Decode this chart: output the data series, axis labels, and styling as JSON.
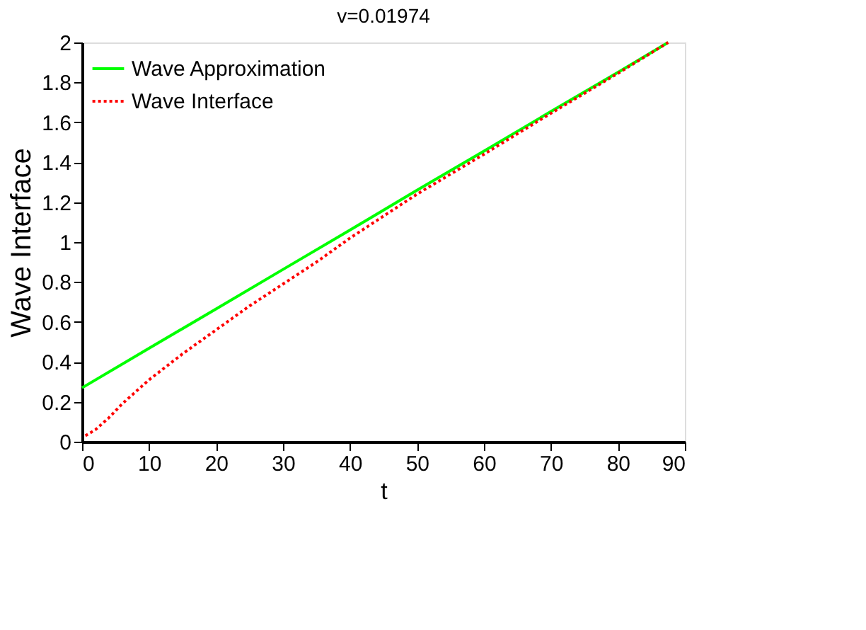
{
  "chart_data": {
    "type": "line",
    "title": "v=0.01974",
    "xlabel": "t",
    "ylabel": "Wave Interface",
    "xlim": [
      0,
      90
    ],
    "ylim": [
      0,
      2
    ],
    "xticks": [
      0,
      10,
      20,
      30,
      40,
      50,
      60,
      70,
      80,
      90
    ],
    "yticks": [
      0,
      0.2,
      0.4,
      0.6,
      0.8,
      1,
      1.2,
      1.4,
      1.6,
      1.8,
      2
    ],
    "grid": false,
    "legend": "top left",
    "marker": "none",
    "series": [
      {
        "name": "Wave Approximation",
        "color": "#00ff00",
        "line_style": "solid",
        "x": [
          0,
          10,
          20,
          30,
          40,
          50,
          60,
          70,
          80,
          87.5
        ],
        "values": [
          0.27,
          0.468,
          0.665,
          0.863,
          1.06,
          1.26,
          1.456,
          1.654,
          1.85,
          2.0
        ]
      },
      {
        "name": "Wave Interface",
        "color": "#ff0000",
        "line_style": "dotted",
        "x": [
          0.5,
          2,
          4,
          6,
          8,
          10,
          15,
          20,
          25,
          30,
          35,
          40,
          45,
          50,
          60,
          70,
          80,
          87.5
        ],
        "values": [
          0.03,
          0.06,
          0.12,
          0.19,
          0.25,
          0.31,
          0.44,
          0.56,
          0.68,
          0.79,
          0.9,
          1.02,
          1.13,
          1.24,
          1.44,
          1.645,
          1.845,
          2.0
        ]
      }
    ]
  }
}
